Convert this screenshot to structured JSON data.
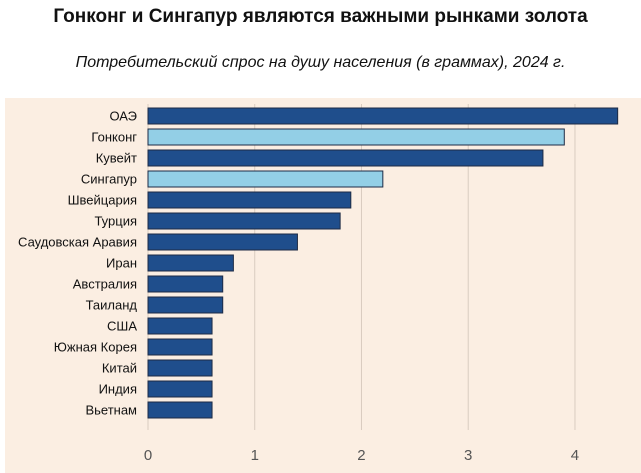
{
  "chart_data": {
    "type": "bar",
    "orientation": "horizontal",
    "title": "Гонконг и Сингапур являются важными рынками золота",
    "subtitle": "Потребительский спрос на душу населения (в граммах), 2024 г.",
    "xlabel": "",
    "ylabel": "",
    "categories": [
      "ОАЭ",
      "Гонконг",
      "Кувейт",
      "Сингапур",
      "Швейцария",
      "Турция",
      "Саудовская Аравия",
      "Иран",
      "Австралия",
      "Таиланд",
      "США",
      "Южная Корея",
      "Китай",
      "Индия",
      "Вьетнам"
    ],
    "values": [
      4.4,
      3.9,
      3.7,
      2.2,
      1.9,
      1.8,
      1.4,
      0.8,
      0.7,
      0.7,
      0.6,
      0.6,
      0.6,
      0.6,
      0.6
    ],
    "highlighted": [
      "Гонконг",
      "Сингапур"
    ],
    "xlim": [
      0,
      4.45
    ],
    "xticks": [
      "0",
      "1",
      "2",
      "3",
      "4"
    ],
    "grid": true,
    "colors": {
      "background": "#fbeee2",
      "bar": "#1f4e8c",
      "bar_highlight": "#93cfe6",
      "bar_stroke": "#1d2b45",
      "grid": "#d9ccc0"
    }
  }
}
